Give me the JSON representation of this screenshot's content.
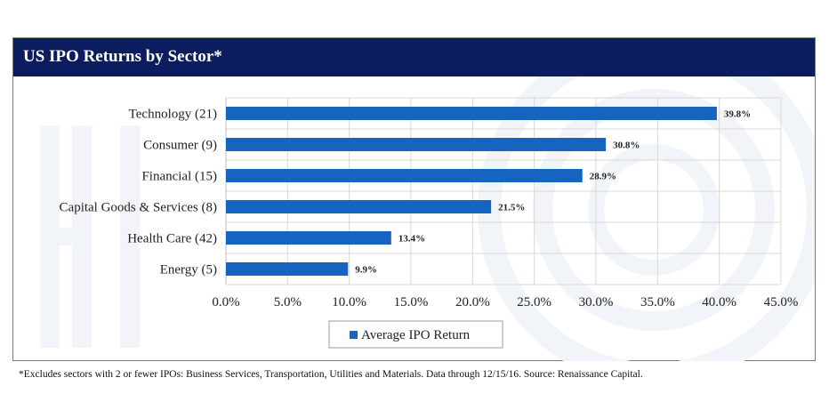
{
  "header": {
    "title": "US IPO Returns by Sector*"
  },
  "colors": {
    "header_bg": "#0b1d5e",
    "bar": "#1565c0",
    "grid": "#d9d9d9"
  },
  "chart_data": {
    "type": "bar",
    "orientation": "horizontal",
    "title": "US IPO Returns by Sector*",
    "categories": [
      "Technology (21)",
      "Consumer (9)",
      "Financial (15)",
      "Capital Goods & Services (8)",
      "Health Care (42)",
      "Energy (5)"
    ],
    "series": [
      {
        "name": "Average IPO Return",
        "values": [
          39.8,
          30.8,
          28.9,
          21.5,
          13.4,
          9.9
        ],
        "labels": [
          "39.8%",
          "30.8%",
          "28.9%",
          "21.5%",
          "13.4%",
          "9.9%"
        ]
      }
    ],
    "xlim": [
      0,
      45
    ],
    "xticks": [
      "0.0%",
      "5.0%",
      "10.0%",
      "15.0%",
      "20.0%",
      "25.0%",
      "30.0%",
      "35.0%",
      "40.0%",
      "45.0%"
    ],
    "grid": true,
    "legend": "bottom-center"
  },
  "footnote": "*Excludes sectors with 2 or fewer IPOs: Business Services, Transportation, Utilities and Materials. Data through 12/15/16. Source: Renaissance Capital."
}
